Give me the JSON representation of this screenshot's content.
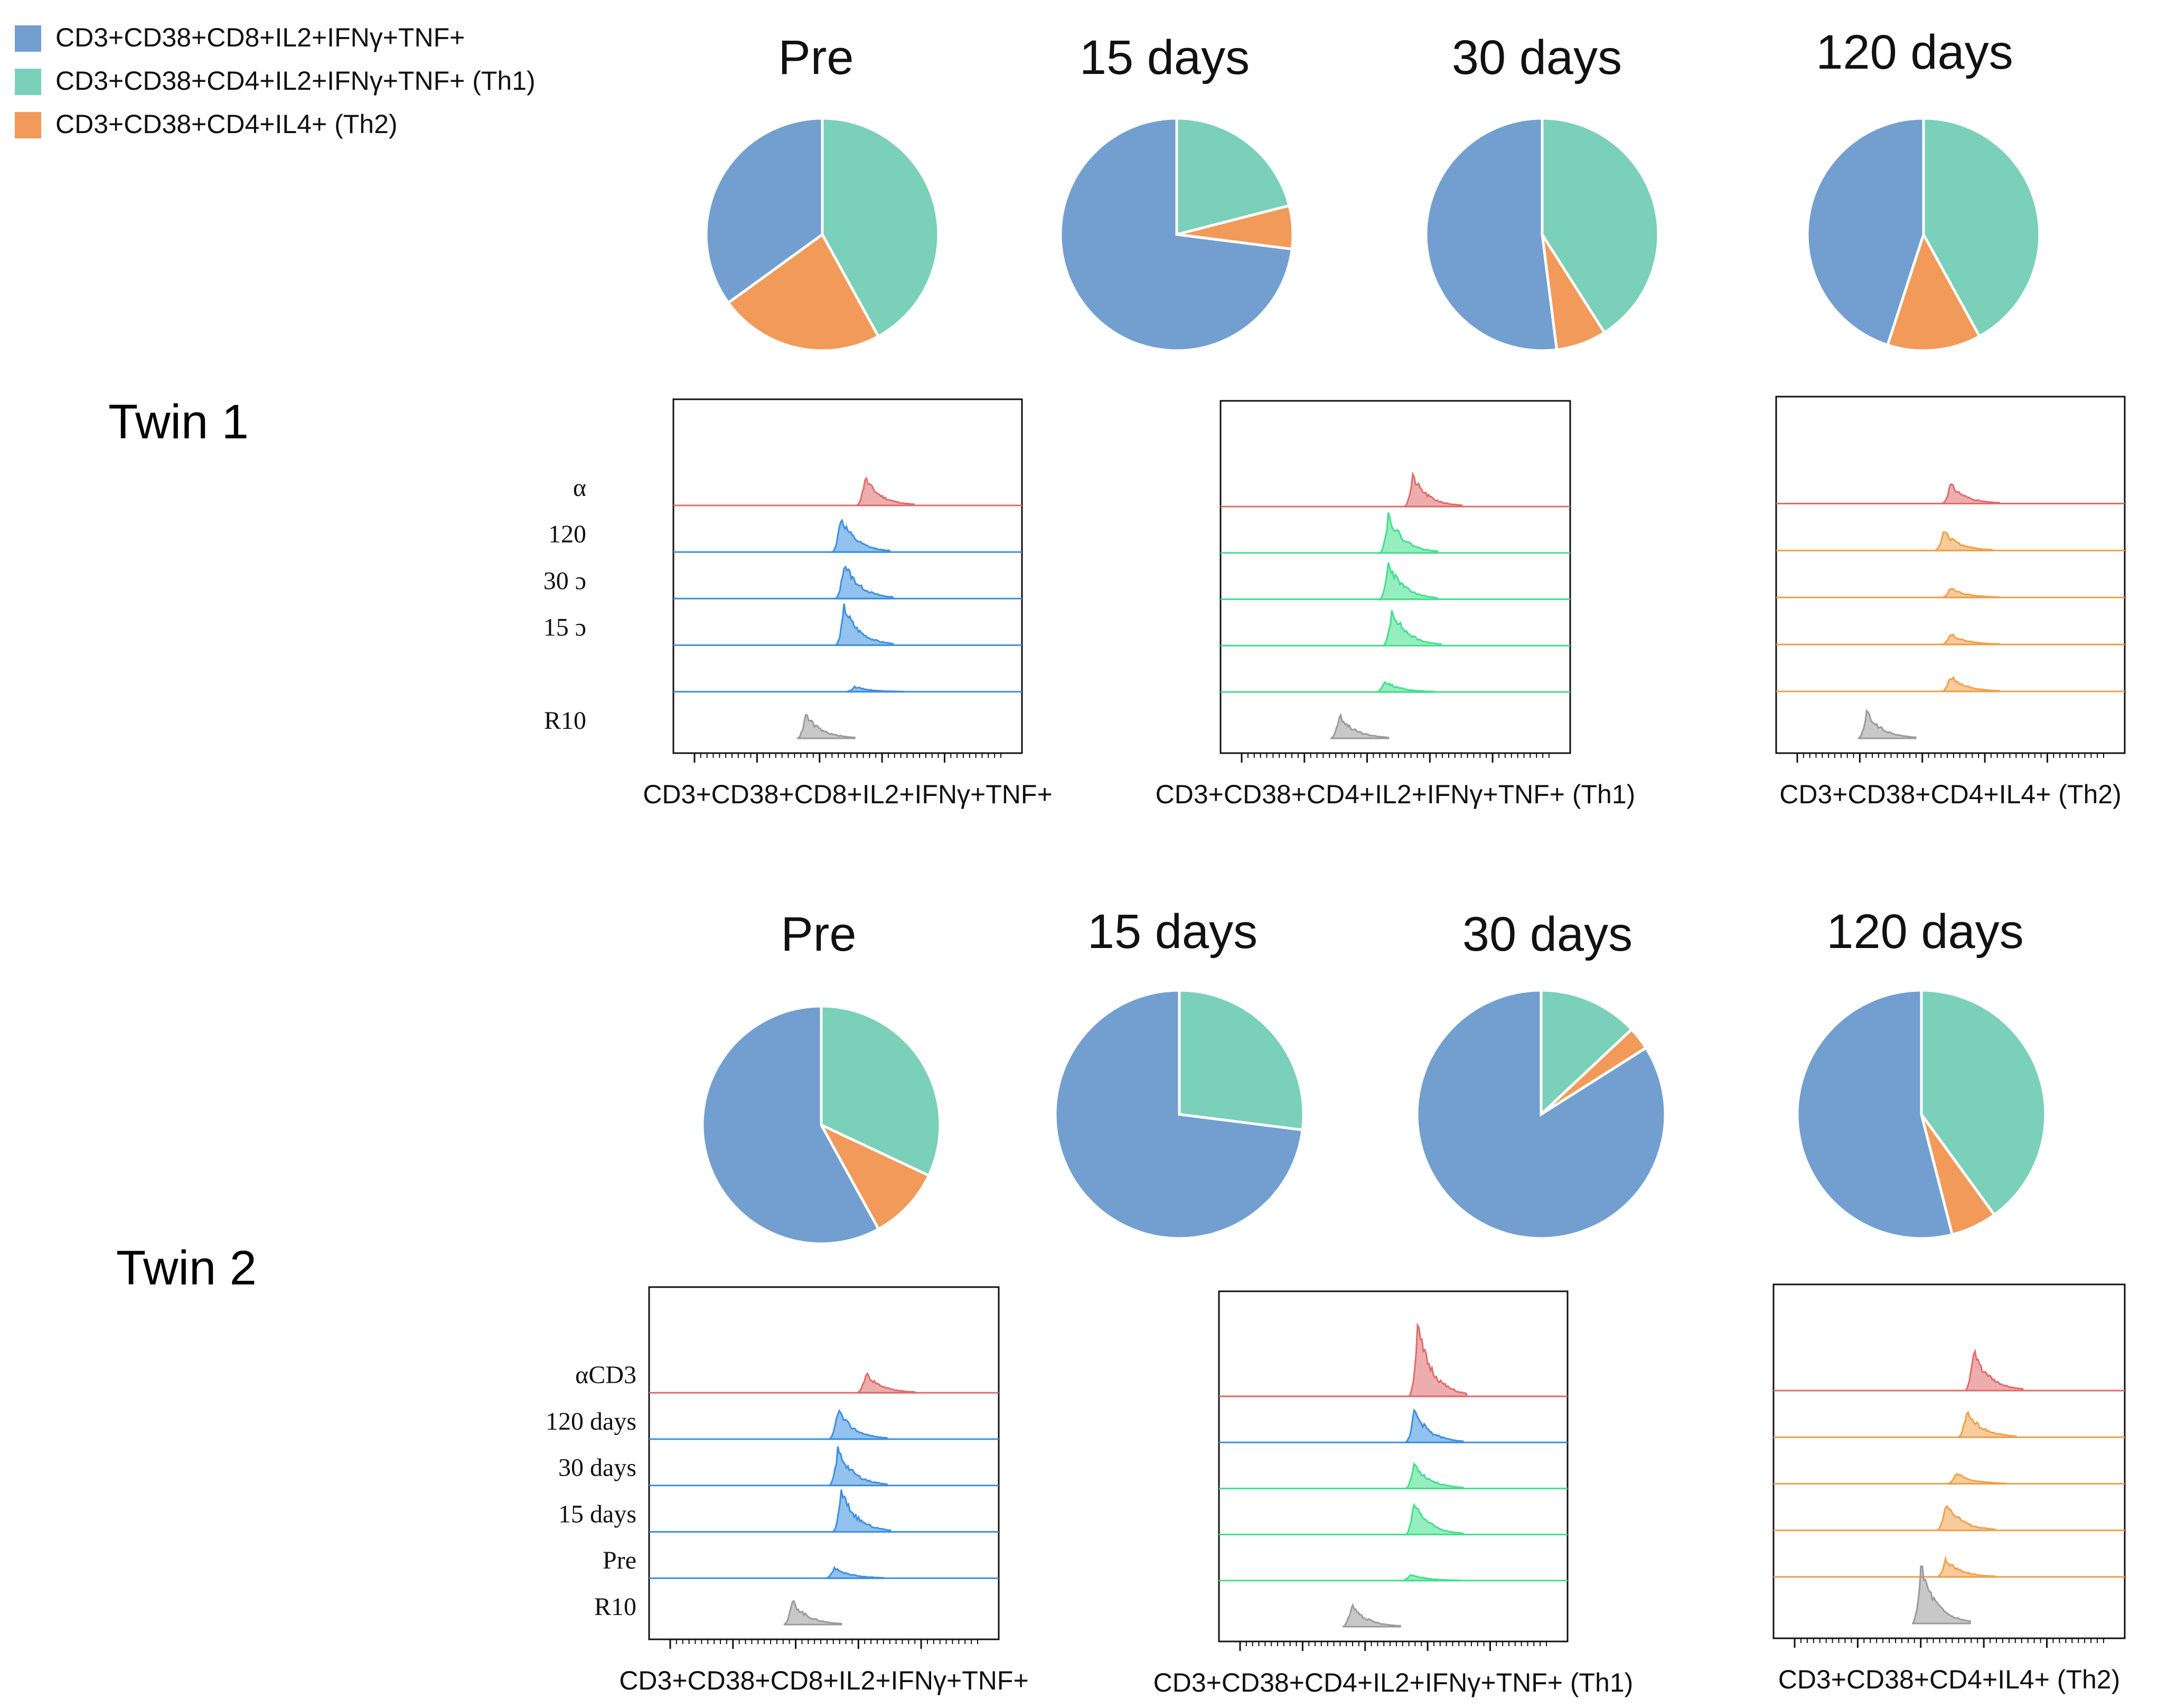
{
  "colors": {
    "cd8": "#729fcf",
    "th1": "#7ad0b9",
    "th2": "#f29a5a",
    "hist_acd3": "#e06a6a",
    "hist_cd8": "#3b8fe0",
    "hist_th1": "#3fe08a",
    "hist_th2": "#f0a048",
    "hist_r10": "#9a9a9a"
  },
  "legend": [
    {
      "label": "CD3+CD38+CD8+IL2+IFNγ+TNF+",
      "color": "#729fcf"
    },
    {
      "label": "CD3+CD38+CD4+IL2+IFNγ+TNF+ (Th1)",
      "color": "#7ad0b9"
    },
    {
      "label": "CD3+CD38+CD4+IL4+ (Th2)",
      "color": "#f29a5a"
    }
  ],
  "chart_data": [
    {
      "type": "pie",
      "twin": "Twin 1",
      "series_names": [
        "CD3+CD38+CD8+IL2+IFNγ+TNF+",
        "CD3+CD38+CD4+IL2+IFNγ+TNF+ (Th1)",
        "CD3+CD38+CD4+IL4+ (Th2)"
      ],
      "pies": [
        {
          "title": "Pre",
          "values": [
            35,
            42,
            23
          ]
        },
        {
          "title": "15 days",
          "values": [
            73,
            21,
            6
          ]
        },
        {
          "title": "30 days",
          "values": [
            52,
            41,
            7
          ]
        },
        {
          "title": "120 days",
          "values": [
            45,
            42,
            13
          ]
        }
      ]
    },
    {
      "type": "histogram",
      "twin": "Twin 1",
      "panels": [
        {
          "xlabel": "CD3+CD38+CD8+IL2+IFNγ+TNF+",
          "row_labels": [
            "α",
            "120",
            "30 ɔ",
            "15 ɔ",
            "",
            "R10"
          ],
          "row_colors": [
            "hist_acd3",
            "hist_cd8",
            "hist_cd8",
            "hist_cd8",
            "hist_cd8",
            "hist_r10"
          ],
          "peak_x": [
            0.55,
            0.48,
            0.49,
            0.49,
            0.52,
            0.38
          ],
          "peak_h": [
            0.65,
            0.8,
            0.85,
            0.9,
            0.12,
            0.55
          ]
        },
        {
          "xlabel": "CD3+CD38+CD4+IL2+IFNγ+TNF+ (Th1)",
          "row_labels": [
            "",
            "",
            "",
            "",
            "",
            ""
          ],
          "row_colors": [
            "hist_acd3",
            "hist_th1",
            "hist_th1",
            "hist_th1",
            "hist_th1",
            "hist_r10"
          ],
          "peak_x": [
            0.55,
            0.48,
            0.48,
            0.49,
            0.47,
            0.34
          ],
          "peak_h": [
            0.7,
            0.9,
            0.85,
            0.85,
            0.25,
            0.55
          ]
        },
        {
          "xlabel": "CD3+CD38+CD4+IL4+ (Th2)",
          "row_labels": [
            "",
            "",
            "",
            "",
            "",
            ""
          ],
          "row_colors": [
            "hist_acd3",
            "hist_th2",
            "hist_th2",
            "hist_th2",
            "hist_th2",
            "hist_r10"
          ],
          "peak_x": [
            0.5,
            0.48,
            0.5,
            0.5,
            0.5,
            0.26
          ],
          "peak_h": [
            0.45,
            0.45,
            0.22,
            0.25,
            0.35,
            0.6
          ]
        }
      ]
    },
    {
      "type": "pie",
      "twin": "Twin 2",
      "series_names": [
        "CD3+CD38+CD8+IL2+IFNγ+TNF+",
        "CD3+CD38+CD4+IL2+IFNγ+TNF+ (Th1)",
        "CD3+CD38+CD4+IL4+ (Th2)"
      ],
      "pies": [
        {
          "title": "Pre",
          "values": [
            58,
            32,
            10
          ]
        },
        {
          "title": "15 days",
          "values": [
            73,
            27,
            0
          ]
        },
        {
          "title": "30 days",
          "values": [
            84,
            13,
            3
          ]
        },
        {
          "title": "120 days",
          "values": [
            54,
            40,
            6
          ]
        }
      ]
    },
    {
      "type": "histogram",
      "twin": "Twin 2",
      "panels": [
        {
          "xlabel": "CD3+CD38+CD8+IL2+IFNγ+TNF+",
          "row_labels": [
            "αCD3",
            "120 days",
            "30 days",
            "15 days",
            "Pre",
            "R10"
          ],
          "row_colors": [
            "hist_acd3",
            "hist_cd8",
            "hist_cd8",
            "hist_cd8",
            "hist_cd8",
            "hist_r10"
          ],
          "peak_x": [
            0.62,
            0.54,
            0.54,
            0.55,
            0.53,
            0.41
          ],
          "peak_h": [
            0.45,
            0.7,
            0.85,
            0.95,
            0.25,
            0.55
          ]
        },
        {
          "xlabel": "CD3+CD38+CD4+IL2+IFNγ+TNF+ (Th1)",
          "row_labels": [
            "",
            "",
            "",
            "",
            "",
            ""
          ],
          "row_colors": [
            "hist_acd3",
            "hist_cd8",
            "hist_th1",
            "hist_th1",
            "hist_th1",
            "hist_r10"
          ],
          "peak_x": [
            0.57,
            0.56,
            0.56,
            0.56,
            0.55,
            0.38
          ],
          "peak_h": [
            1.6,
            0.75,
            0.6,
            0.75,
            0.15,
            0.5
          ]
        },
        {
          "xlabel": "CD3+CD38+CD4+IL4+ (Th2)",
          "row_labels": [
            "",
            "",
            "",
            "",
            "",
            ""
          ],
          "row_colors": [
            "hist_acd3",
            "hist_th2",
            "hist_th2",
            "hist_th2",
            "hist_th2",
            "hist_r10"
          ],
          "peak_x": [
            0.57,
            0.55,
            0.52,
            0.49,
            0.49,
            0.42
          ],
          "peak_h": [
            0.9,
            0.6,
            0.25,
            0.65,
            0.4,
            1.3
          ]
        }
      ]
    }
  ],
  "twin_labels": [
    "Twin 1",
    "Twin 2"
  ]
}
